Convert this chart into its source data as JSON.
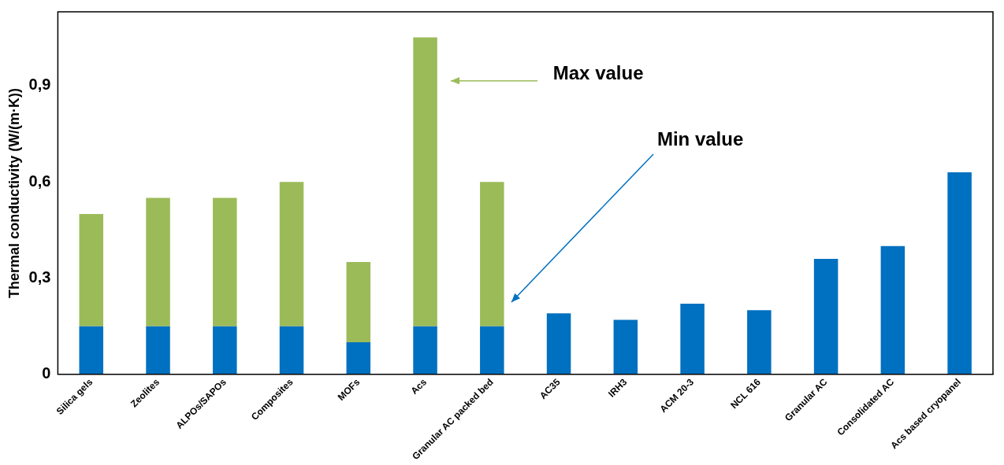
{
  "chart_data": {
    "type": "bar",
    "stacked": true,
    "ylabel": "Thermal conductivity (W/(m·K))",
    "categories": [
      "Silica gels",
      "Zeolites",
      "ALPOs/SAPOs",
      "Composites",
      "MOFs",
      "Acs",
      "Granular AC packed bed",
      "AC35",
      "IRH3",
      "ACM 20-3",
      "NCL 616",
      "Granular AC",
      "Consolidated AC",
      "Acs based cryopanel"
    ],
    "series": [
      {
        "color": "#0070c0",
        "values": [
          0.15,
          0.15,
          0.15,
          0.15,
          0.1,
          0.15,
          0.15,
          0.19,
          0.17,
          0.22,
          0.2,
          0.36,
          0.4,
          0.63
        ]
      },
      {
        "color": "#9bbb59",
        "values": [
          0.35,
          0.4,
          0.4,
          0.45,
          0.25,
          0.9,
          0.45,
          null,
          null,
          null,
          null,
          null,
          null,
          null
        ]
      }
    ],
    "ylim": [
      0,
      1.13
    ],
    "yticks": [
      0,
      {
        "value": 0.3,
        "label": "0,3"
      },
      {
        "value": 0.6,
        "label": "0,6"
      },
      {
        "value": 0.9,
        "label": "0,9"
      }
    ],
    "grid": false,
    "legend": false,
    "annotations": [
      "Max value",
      "Min value"
    ]
  }
}
